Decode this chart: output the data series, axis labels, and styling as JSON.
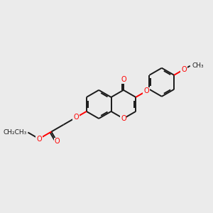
{
  "bg": "#ebebeb",
  "bc": "#1a1a1a",
  "hc": "#ff0000",
  "lw": 1.4,
  "fs": 7.0,
  "figsize": [
    3.0,
    3.0
  ],
  "dpi": 100,
  "xlim": [
    -3.2,
    3.8
  ],
  "ylim": [
    -2.0,
    2.0
  ]
}
